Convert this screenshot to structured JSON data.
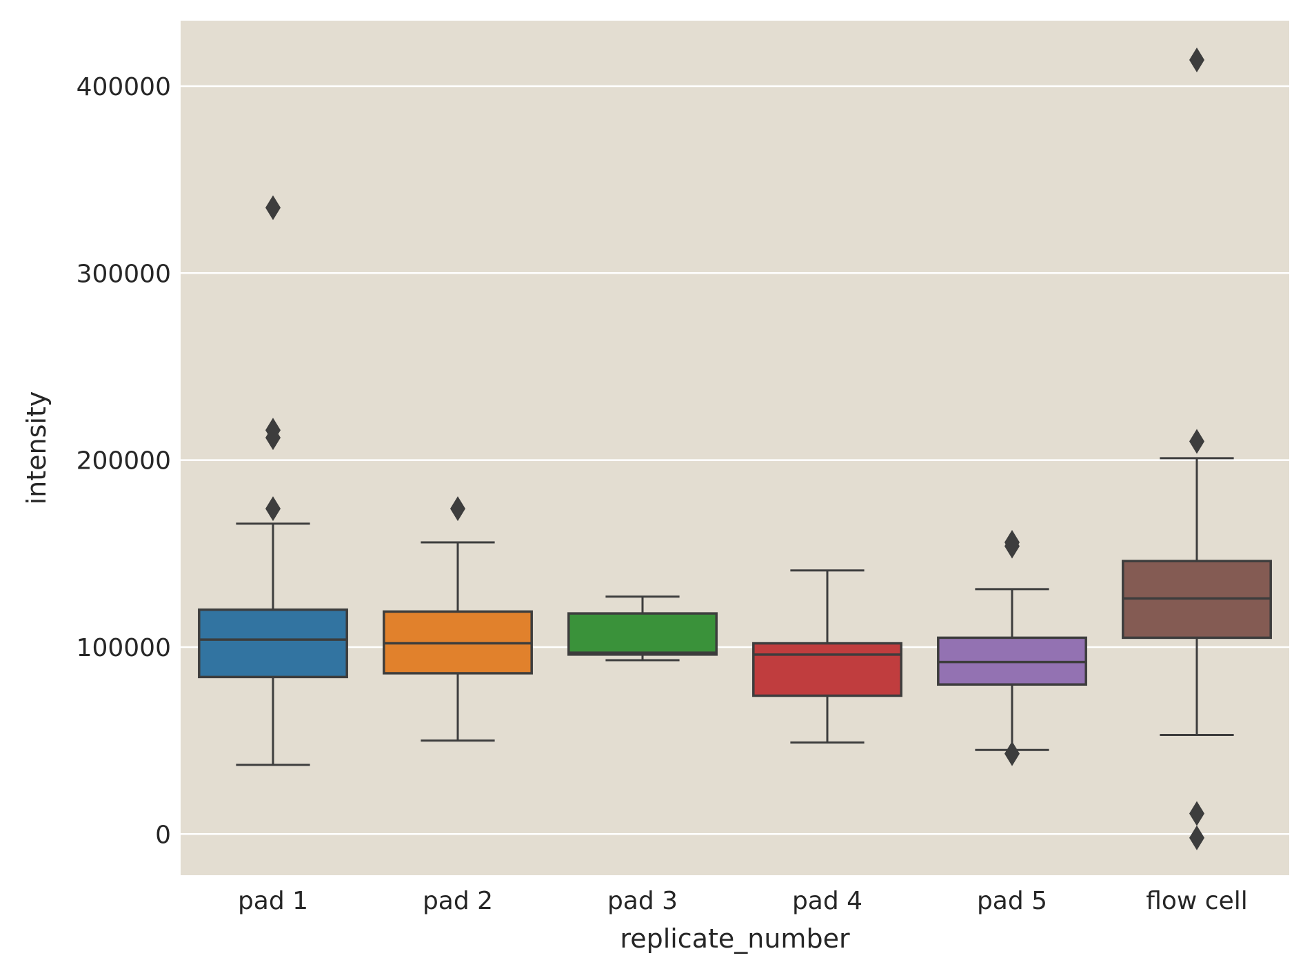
{
  "chart_data": {
    "type": "box",
    "xlabel": "replicate_number",
    "ylabel": "intensity",
    "ylim": [
      -22000,
      435000
    ],
    "yticks": [
      0,
      100000,
      200000,
      300000,
      400000
    ],
    "ytick_labels": [
      "0",
      "100000",
      "200000",
      "300000",
      "400000"
    ],
    "grid": "horizontal",
    "categories": [
      "pad 1",
      "pad 2",
      "pad 3",
      "pad 4",
      "pad 5",
      "flow cell"
    ],
    "boxes": [
      {
        "category": "pad 1",
        "color": "#3274a1",
        "whisker_low": 37000,
        "q1": 84000,
        "median": 104000,
        "q3": 120000,
        "whisker_high": 166000,
        "outliers": [
          174000,
          212000,
          216000,
          335000
        ]
      },
      {
        "category": "pad 2",
        "color": "#e1812c",
        "whisker_low": 50000,
        "q1": 86000,
        "median": 102000,
        "q3": 119000,
        "whisker_high": 156000,
        "outliers": [
          174000
        ]
      },
      {
        "category": "pad 3",
        "color": "#3a923a",
        "whisker_low": 93000,
        "q1": 96000,
        "median": 97000,
        "q3": 118000,
        "whisker_high": 127000,
        "outliers": []
      },
      {
        "category": "pad 4",
        "color": "#c03d3e",
        "whisker_low": 49000,
        "q1": 74000,
        "median": 96000,
        "q3": 102000,
        "whisker_high": 141000,
        "outliers": []
      },
      {
        "category": "pad 5",
        "color": "#9372b2",
        "whisker_low": 45000,
        "q1": 80000,
        "median": 92000,
        "q3": 105000,
        "whisker_high": 131000,
        "outliers": [
          43000,
          154000,
          156000
        ]
      },
      {
        "category": "flow cell",
        "color": "#845b53",
        "whisker_low": 53000,
        "q1": 105000,
        "median": 126000,
        "q3": 146000,
        "whisker_high": 201000,
        "outliers": [
          -2000,
          11000,
          210000,
          414000
        ]
      }
    ],
    "colors": {
      "plot_background": "#e3ddd1",
      "grid": "#ffffff",
      "box_edge": "#3d3d3d",
      "text": "#262626"
    }
  }
}
